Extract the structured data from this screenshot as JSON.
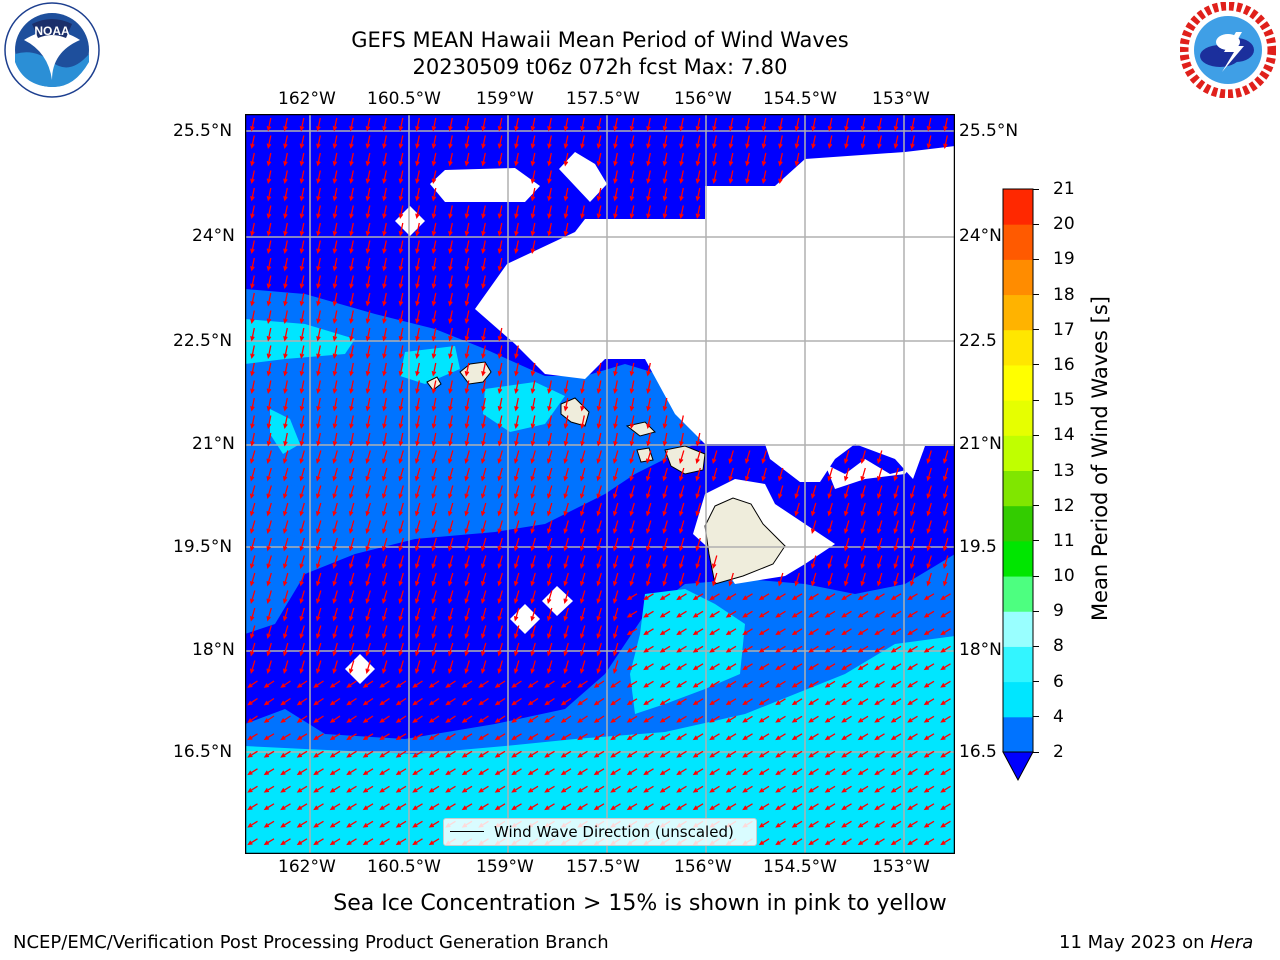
{
  "title": {
    "line1": "GEFS MEAN Hawaii Mean Period of Wind Waves",
    "line2": "20230509 t06z 072h fcst   Max: 7.80"
  },
  "logos": {
    "left": {
      "name": "noaa-logo",
      "text": "NOAA",
      "ring_text": "NATIONAL OCEANIC AND ATMOSPHERIC ADMINISTRATION · U.S. DEPARTMENT OF COMMERCE"
    },
    "right": {
      "name": "nws-logo",
      "ring_text": "NATIONAL WEATHER SERVICE"
    }
  },
  "map": {
    "lon_labels": [
      "162°W",
      "160.5°W",
      "159°W",
      "157.5°W",
      "156°W",
      "154.5°W",
      "153°W"
    ],
    "lat_labels": [
      "25.5°N",
      "24°N",
      "22.5°N",
      "21°N",
      "19.5°N",
      "18°N",
      "16.5°N"
    ],
    "lat_labels_right": [
      "25.5°N",
      "24°N",
      "22.5",
      "21°N",
      "19.5",
      "18°N",
      "16.5"
    ],
    "legend": "Wind Wave Direction (unscaled)",
    "arrow_color": "#ff0000"
  },
  "colorbar": {
    "title": "Mean Period of Wind Waves [s]",
    "ticks": [
      "2",
      "4",
      "6",
      "8",
      "9",
      "10",
      "11",
      "12",
      "13",
      "14",
      "15",
      "16",
      "17",
      "18",
      "19",
      "20",
      "21"
    ],
    "colors": [
      "#0073ff",
      "#00e6ff",
      "#33f5ff",
      "#99ffff",
      "#4dff80",
      "#00e600",
      "#33cc00",
      "#80e600",
      "#c0ff00",
      "#e6ff00",
      "#ffff00",
      "#ffe600",
      "#ffb300",
      "#ff8c00",
      "#ff5a00",
      "#ff2800"
    ],
    "under_color": "#0000ff"
  },
  "subtitle": "Sea Ice Concentration > 15% is shown in pink to yellow",
  "footer": {
    "left": "NCEP/EMC/Verification Post Processing Product Generation Branch",
    "right_date": "11 May 2023 on ",
    "right_host": "Hera"
  }
}
